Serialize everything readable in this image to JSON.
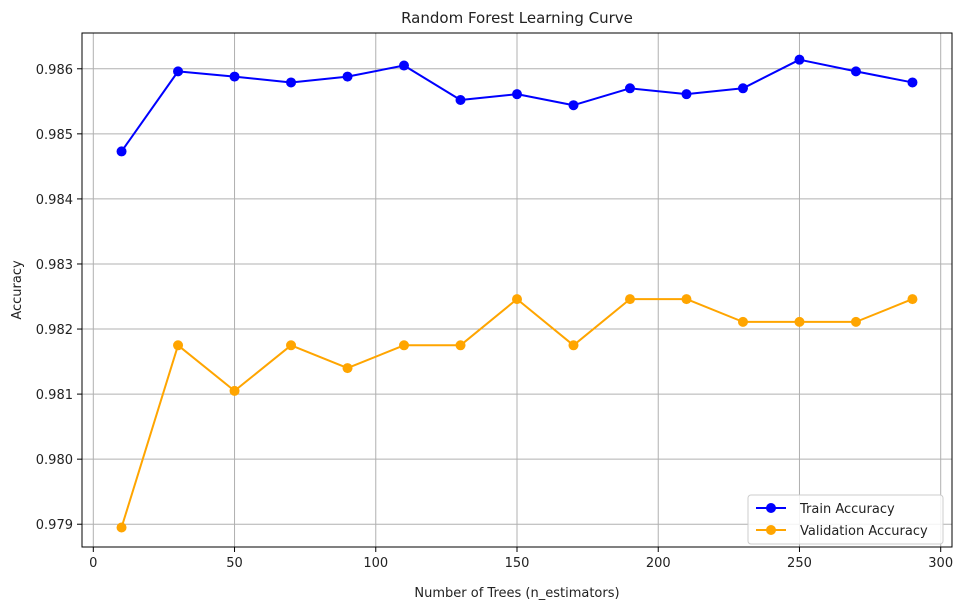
{
  "chart_data": {
    "type": "line",
    "title": "Random Forest Learning Curve",
    "xlabel": "Number of Trees (n_estimators)",
    "ylabel": "Accuracy",
    "x": [
      10,
      30,
      50,
      70,
      90,
      110,
      130,
      150,
      170,
      190,
      210,
      230,
      250,
      270,
      290
    ],
    "series": [
      {
        "name": "Train Accuracy",
        "color": "#0000ff",
        "values": [
          0.98473,
          0.98596,
          0.98588,
          0.98579,
          0.98588,
          0.98605,
          0.98552,
          0.98561,
          0.98544,
          0.9857,
          0.98561,
          0.9857,
          0.98614,
          0.98596,
          0.98579
        ]
      },
      {
        "name": "Validation Accuracy",
        "color": "#ffa500",
        "values": [
          0.97895,
          0.98175,
          0.98105,
          0.98175,
          0.9814,
          0.98175,
          0.98175,
          0.98246,
          0.98175,
          0.98246,
          0.98246,
          0.98211,
          0.98211,
          0.98211,
          0.98246
        ]
      }
    ],
    "xlim": [
      -4,
      304
    ],
    "ylim": [
      0.97865,
      0.98655
    ],
    "xticks": [
      0,
      50,
      100,
      150,
      200,
      250,
      300
    ],
    "xtick_labels": [
      "0",
      "50",
      "100",
      "150",
      "200",
      "250",
      "300"
    ],
    "yticks": [
      0.979,
      0.98,
      0.981,
      0.982,
      0.983,
      0.984,
      0.985,
      0.986
    ],
    "ytick_labels": [
      "0.979",
      "0.980",
      "0.981",
      "0.982",
      "0.983",
      "0.984",
      "0.985",
      "0.986"
    ],
    "grid": true,
    "legend_position": "lower-right"
  }
}
